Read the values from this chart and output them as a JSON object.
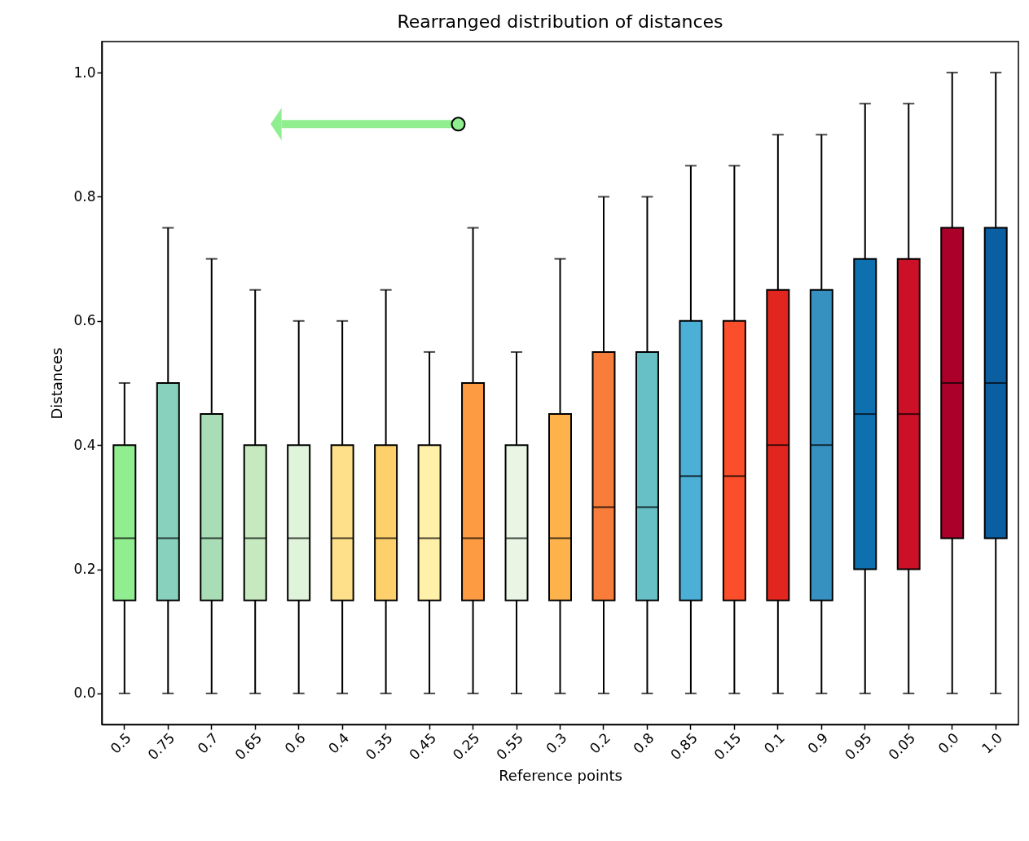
{
  "chart_data": {
    "type": "box",
    "title": "Rearranged distribution of distances",
    "xlabel": "Reference points",
    "ylabel": "Distances",
    "categories": [
      "0.5",
      "0.75",
      "0.7",
      "0.65",
      "0.6",
      "0.4",
      "0.35",
      "0.45",
      "0.25",
      "0.55",
      "0.3",
      "0.2",
      "0.8",
      "0.85",
      "0.15",
      "0.1",
      "0.9",
      "0.95",
      "0.05",
      "0.0",
      "1.0"
    ],
    "boxes": [
      {
        "low": 0,
        "q1": 0.15,
        "median": 0.25,
        "q3": 0.4,
        "high": 0.5
      },
      {
        "low": 0,
        "q1": 0.15,
        "median": 0.25,
        "q3": 0.5,
        "high": 0.75
      },
      {
        "low": 0,
        "q1": 0.15,
        "median": 0.25,
        "q3": 0.45,
        "high": 0.7
      },
      {
        "low": 0,
        "q1": 0.15,
        "median": 0.25,
        "q3": 0.4,
        "high": 0.65
      },
      {
        "low": 0,
        "q1": 0.15,
        "median": 0.25,
        "q3": 0.4,
        "high": 0.6
      },
      {
        "low": 0,
        "q1": 0.15,
        "median": 0.25,
        "q3": 0.4,
        "high": 0.6
      },
      {
        "low": 0,
        "q1": 0.15,
        "median": 0.25,
        "q3": 0.4,
        "high": 0.65
      },
      {
        "low": 0,
        "q1": 0.15,
        "median": 0.25,
        "q3": 0.4,
        "high": 0.55
      },
      {
        "low": 0,
        "q1": 0.15,
        "median": 0.25,
        "q3": 0.5,
        "high": 0.75
      },
      {
        "low": 0,
        "q1": 0.15,
        "median": 0.25,
        "q3": 0.4,
        "high": 0.55
      },
      {
        "low": 0,
        "q1": 0.15,
        "median": 0.25,
        "q3": 0.45,
        "high": 0.7
      },
      {
        "low": 0,
        "q1": 0.15,
        "median": 0.3,
        "q3": 0.55,
        "high": 0.8
      },
      {
        "low": 0,
        "q1": 0.15,
        "median": 0.3,
        "q3": 0.55,
        "high": 0.8
      },
      {
        "low": 0,
        "q1": 0.15,
        "median": 0.35,
        "q3": 0.6,
        "high": 0.85
      },
      {
        "low": 0,
        "q1": 0.15,
        "median": 0.35,
        "q3": 0.6,
        "high": 0.85
      },
      {
        "low": 0,
        "q1": 0.15,
        "median": 0.4,
        "q3": 0.65,
        "high": 0.9
      },
      {
        "low": 0,
        "q1": 0.15,
        "median": 0.4,
        "q3": 0.65,
        "high": 0.9
      },
      {
        "low": 0,
        "q1": 0.2,
        "median": 0.45,
        "q3": 0.7,
        "high": 0.95
      },
      {
        "low": 0,
        "q1": 0.2,
        "median": 0.45,
        "q3": 0.7,
        "high": 0.95
      },
      {
        "low": 0,
        "q1": 0.25,
        "median": 0.5,
        "q3": 0.75,
        "high": 1.0
      },
      {
        "low": 0,
        "q1": 0.25,
        "median": 0.5,
        "q3": 0.75,
        "high": 1.0
      }
    ],
    "colors": [
      "#90ee90",
      "#88d1bc",
      "#a8ddb5",
      "#c7e9c0",
      "#e0f3db",
      "#ffe08a",
      "#fdd06b",
      "#fff0aa",
      "#fd9b43",
      "#e8f6e3",
      "#feb24c",
      "#f87c3a",
      "#67c0c6",
      "#4bafd6",
      "#fc4e2a",
      "#e2261f",
      "#3690c0",
      "#0f70b0",
      "#cb1028",
      "#ab0029",
      "#0b5ea0"
    ],
    "ylim": [
      -0.05,
      1.05
    ],
    "yticks": [
      {
        "value": 0,
        "label": "0.0"
      },
      0.2,
      0.4,
      0.6,
      0.8,
      {
        "value": 1,
        "label": "1.0"
      }
    ],
    "grid": false
  }
}
